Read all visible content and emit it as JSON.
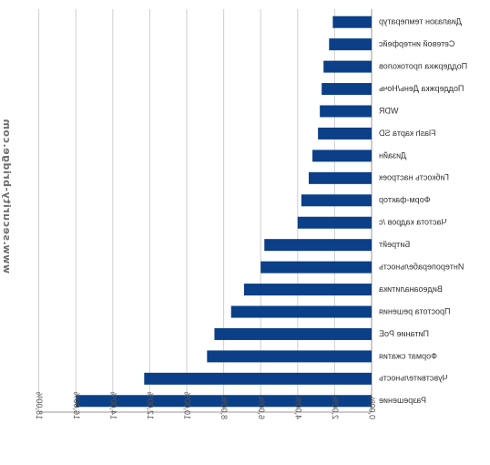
{
  "chart_data": {
    "type": "bar",
    "orientation": "horizontal",
    "mirrored": true,
    "title": "",
    "xlabel": "",
    "ylabel": "",
    "xlim": [
      0,
      18
    ],
    "tick_labels": [
      "0,00%",
      "2,00%",
      "4,00%",
      "6,00%",
      "8,00%",
      "10,00%",
      "12,00%",
      "14,00%",
      "16,00%",
      "18,00%"
    ],
    "grid": true,
    "bar_color": "#0b3f87",
    "categories": [
      "Диапазон температур",
      "Сетевой интерфейс",
      "Поддержка протоколов",
      "Поддержка День/Ночь",
      "WDR",
      "Flash карта SD",
      "Дизайн",
      "Гибкость настроек",
      "Форм-фактор",
      "Частота кадров /с",
      "Битрейт",
      "Интероперабельность",
      "Видеоаналитика",
      "Простота решения",
      "Питание PoE",
      "Формат сжатия",
      "Чувствительность",
      "Разрешение"
    ],
    "values": [
      2.1,
      2.3,
      2.6,
      2.7,
      2.8,
      2.9,
      3.2,
      3.4,
      3.8,
      4.0,
      5.8,
      6.0,
      6.9,
      7.6,
      8.5,
      8.9,
      12.3,
      16.0
    ]
  },
  "watermark": "www.security-bridge.com"
}
